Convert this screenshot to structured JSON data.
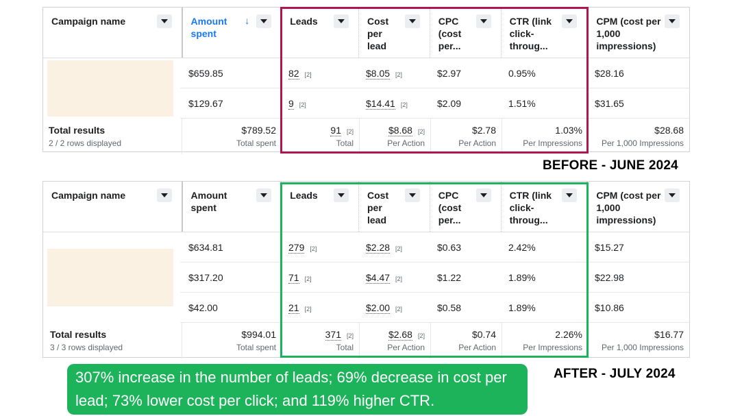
{
  "columns": {
    "campaign_name": "Campaign name",
    "amount_spent": "Amount spent",
    "leads": "Leads",
    "cost_per_lead": "Cost per lead",
    "cpc": "CPC (cost per...",
    "ctr": "CTR (link click-throug...",
    "cpm": "CPM (cost per 1,000 impressions)"
  },
  "before": {
    "label": "BEFORE - JUNE 2024",
    "frame_color": "#b0174f",
    "rows": [
      {
        "amount": "$659.85",
        "leads": "82",
        "leads_note": "[2]",
        "cpl": "$8.05",
        "cpl_note": "[2]",
        "cpc": "$2.97",
        "ctr": "0.95%",
        "cpm": "$28.16"
      },
      {
        "amount": "$129.67",
        "leads": "9",
        "leads_note": "[2]",
        "cpl": "$14.41",
        "cpl_note": "[2]",
        "cpc": "$2.09",
        "ctr": "1.51%",
        "cpm": "$31.65"
      }
    ],
    "totals": {
      "title": "Total results",
      "rows_displayed": "2 / 2 rows displayed",
      "amount": "$789.52",
      "amount_sub": "Total spent",
      "leads": "91",
      "leads_note": "[2]",
      "leads_sub": "Total",
      "cpl": "$8.68",
      "cpl_note": "[2]",
      "cpl_sub": "Per Action",
      "cpc": "$2.78",
      "cpc_sub": "Per Action",
      "ctr": "1.03%",
      "ctr_sub": "Per Impressions",
      "cpm": "$28.68",
      "cpm_sub": "Per 1,000 Impressions"
    }
  },
  "after": {
    "label": "AFTER - JULY 2024",
    "frame_color": "#1db35a",
    "rows": [
      {
        "amount": "$634.81",
        "leads": "279",
        "leads_note": "[2]",
        "cpl": "$2.28",
        "cpl_note": "[2]",
        "cpc": "$0.63",
        "ctr": "2.42%",
        "cpm": "$15.27"
      },
      {
        "amount": "$317.20",
        "leads": "71",
        "leads_note": "[2]",
        "cpl": "$4.47",
        "cpl_note": "[2]",
        "cpc": "$1.22",
        "ctr": "1.89%",
        "cpm": "$22.98"
      },
      {
        "amount": "$42.00",
        "leads": "21",
        "leads_note": "[2]",
        "cpl": "$2.00",
        "cpl_note": "[2]",
        "cpc": "$0.58",
        "ctr": "1.89%",
        "cpm": "$10.86"
      }
    ],
    "totals": {
      "title": "Total results",
      "rows_displayed": "3 / 3 rows displayed",
      "amount": "$994.01",
      "amount_sub": "Total spent",
      "leads": "371",
      "leads_note": "[2]",
      "leads_sub": "Total",
      "cpl": "$2.68",
      "cpl_note": "[2]",
      "cpl_sub": "Per Action",
      "cpc": "$0.74",
      "cpc_sub": "Per Action",
      "ctr": "2.26%",
      "ctr_sub": "Per Impressions",
      "cpm": "$16.77",
      "cpm_sub": "Per 1,000 Impressions"
    }
  },
  "callout": "307% increase in the number of leads; 69% decrease in cost per lead; 73% lower cost per click; and 119% higher CTR.",
  "icons": {
    "dropdown": "chevron-down-icon",
    "sort": "sort-down-arrow-icon"
  }
}
